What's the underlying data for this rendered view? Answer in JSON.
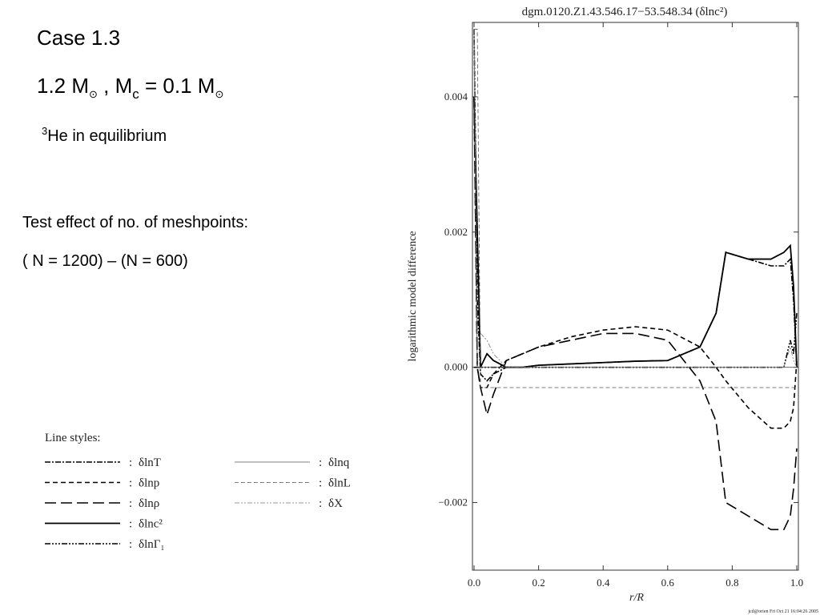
{
  "slide": {
    "heading": "Case 1.3",
    "mass_line": [
      "1.2 M",
      "⊙",
      " , M",
      "c",
      " = 0.1 M",
      "⊙"
    ],
    "composition": [
      "3",
      "He in equilibrium"
    ],
    "test_line": "Test effect of no. of meshpoints:",
    "difference_line": "( N = 1200) – (N = 600)",
    "footer": "jcd@orien Fri Oct 21 16:04:26 2005"
  },
  "chart_data": {
    "type": "line",
    "title": "dgm.0120.Z1.43.546.17−53.548.34   (δlnc²)",
    "x_label": "r/R",
    "y_label": "logarithmic model difference",
    "legend_title": "Line styles:",
    "legend_separator": ":",
    "xlim": [
      -0.005,
      1.005
    ],
    "ylim": [
      -0.003,
      0.0051
    ],
    "xticks": [
      {
        "value": 0,
        "label": "0.0"
      },
      {
        "value": 0.2,
        "label": "0.2"
      },
      {
        "value": 0.4,
        "label": "0.4"
      },
      {
        "value": 0.6,
        "label": "0.6"
      },
      {
        "value": 0.8,
        "label": "0.8"
      },
      {
        "value": 1,
        "label": "1.0"
      }
    ],
    "yticks": [
      {
        "value": -0.002,
        "label": "−0.002"
      },
      {
        "value": 0,
        "label": "0.000"
      },
      {
        "value": 0.002,
        "label": "0.002"
      },
      {
        "value": 0.004,
        "label": "0.004"
      }
    ],
    "x": [
      0,
      0.01,
      0.02,
      0.04,
      0.06,
      0.1,
      0.15,
      0.2,
      0.3,
      0.4,
      0.5,
      0.6,
      0.7,
      0.75,
      0.78,
      0.85,
      0.92,
      0.96,
      0.98,
      0.99,
      1.0
    ],
    "series": [
      {
        "name": "δlnT",
        "color": "#000000",
        "width": 1.6,
        "dash": [
          7,
          2,
          2,
          2
        ],
        "values": [
          0.005,
          0.001,
          -0.0001,
          -0.0002,
          -0.0001,
          0,
          0,
          3e-05,
          5e-05,
          7e-05,
          9e-05,
          0.0001,
          0.0003,
          0.0008,
          0.0017,
          0.0016,
          0.0015,
          0.0015,
          0.0016,
          0.001,
          0
        ]
      },
      {
        "name": "δlnp",
        "color": "#000000",
        "width": 1.6,
        "dash": [
          6,
          4
        ],
        "values": [
          0.004,
          0,
          -0.0003,
          -0.0003,
          -0.0001,
          0.0001,
          0.0002,
          0.0003,
          0.00045,
          0.00055,
          0.0006,
          0.00055,
          0.0003,
          0,
          -0.0002,
          -0.0006,
          -0.0009,
          -0.0009,
          -0.0008,
          -0.0006,
          0.0001
        ]
      },
      {
        "name": "δlnρ",
        "color": "#000000",
        "width": 1.6,
        "dash": [
          14,
          6
        ],
        "values": [
          0.004,
          0,
          -0.0003,
          -0.0007,
          -0.0004,
          0.0001,
          0.0002,
          0.0003,
          0.0004,
          0.0005,
          0.0005,
          0.0004,
          -0.0002,
          -0.0008,
          -0.002,
          -0.0022,
          -0.0024,
          -0.0024,
          -0.0022,
          -0.0018,
          -0.0012
        ]
      },
      {
        "name": "δlnc²",
        "color": "#000000",
        "width": 1.8,
        "dash": [],
        "values": [
          0.004,
          0.002,
          0,
          0.0002,
          0.0001,
          0,
          0,
          3e-05,
          5e-05,
          7e-05,
          9e-05,
          0.0001,
          0.0003,
          0.0008,
          0.0017,
          0.0016,
          0.0016,
          0.0017,
          0.0018,
          0.0012,
          0
        ]
      },
      {
        "name": "δlnΓ₁",
        "color": "#000000",
        "width": 1.6,
        "dash": [
          7,
          2,
          2,
          2,
          2,
          2,
          2,
          2
        ],
        "values": [
          0,
          0,
          0,
          0,
          0,
          0,
          0,
          0,
          0,
          0,
          0,
          0,
          0,
          0,
          0,
          0,
          0,
          0,
          0.0004,
          0.0002,
          0.0008
        ]
      },
      {
        "name": "δlnq",
        "color": "#555555",
        "width": 0.8,
        "dash": [],
        "values": [
          0.005,
          0,
          0,
          0,
          0,
          0,
          0,
          0,
          0,
          0,
          0,
          0,
          0,
          0,
          0,
          0,
          0,
          0,
          0,
          0,
          0
        ]
      },
      {
        "name": "δlnL",
        "color": "#555555",
        "width": 0.8,
        "dash": [
          5,
          3
        ],
        "values": [
          0.005,
          0.005,
          -0.0003,
          -0.0003,
          -0.0003,
          -0.0003,
          -0.0003,
          -0.0003,
          -0.0003,
          -0.0003,
          -0.0003,
          -0.0003,
          -0.0003,
          -0.0003,
          -0.0003,
          -0.0003,
          -0.0003,
          -0.0003,
          -0.0003,
          -0.0003,
          -0.0003
        ]
      },
      {
        "name": "δX",
        "color": "#777777",
        "width": 0.8,
        "dash": [
          6,
          2,
          2,
          2,
          2,
          2
        ],
        "values": [
          0.005,
          0.0005,
          0.0005,
          0.0004,
          0.0002,
          0,
          0,
          0,
          0,
          0,
          0,
          0,
          0,
          0,
          0,
          0,
          0,
          0,
          0.0003,
          0.0001,
          0
        ]
      }
    ]
  }
}
